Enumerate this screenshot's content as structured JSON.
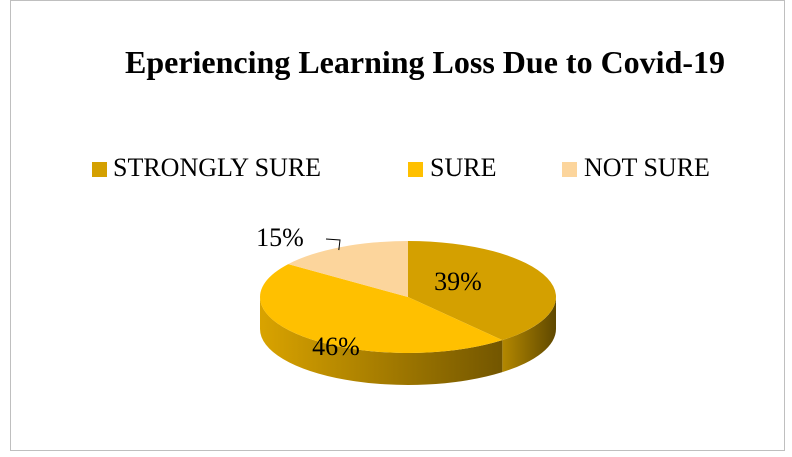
{
  "chart_data": {
    "type": "pie",
    "title": "Eperiencing Learning Loss Due to Covid-19",
    "categories": [
      "STRONGLY SURE",
      "SURE",
      "NOT SURE"
    ],
    "values": [
      39,
      46,
      15
    ],
    "value_labels": [
      "39%",
      "46%",
      "15%"
    ],
    "colors": [
      "#d4a000",
      "#ffc000",
      "#fcd59c"
    ],
    "legend": "top"
  }
}
